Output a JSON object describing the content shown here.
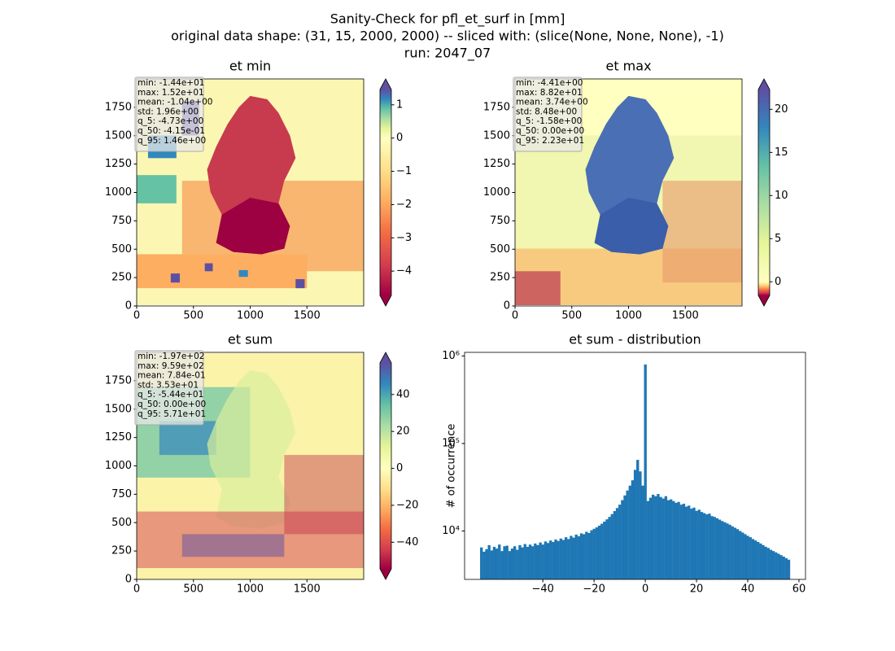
{
  "suptitle": [
    "Sanity-Check for pfl_et_surf in [mm]",
    "original data shape: (31, 15, 2000, 2000) -- sliced with: (slice(None, None, None), -1)",
    "run: 2047_07"
  ],
  "chart_data": [
    {
      "type": "heatmap",
      "title": "et min",
      "xlim": [
        0,
        2000
      ],
      "ylim": [
        0,
        2000
      ],
      "xticks": [
        0,
        500,
        1000,
        1500
      ],
      "yticks": [
        0,
        250,
        500,
        750,
        1000,
        1250,
        1500,
        1750
      ],
      "stats": [
        "min: -1.44e+01",
        "max: 1.52e+01",
        "mean: -1.04e+00",
        "std: 1.96e+00",
        "q_5: -4.73e+00",
        "q_50: -4.15e-01",
        "q_95: 1.46e+00"
      ],
      "cmap": "Spectral",
      "norm_center": 0,
      "clim": [
        -4.73,
        1.46
      ],
      "cticks": [
        1,
        0,
        {
          "value": -1,
          "label": "−1"
        },
        {
          "value": -2,
          "label": "−2"
        },
        {
          "value": -3,
          "label": "−3"
        },
        {
          "value": -4,
          "label": "−4"
        }
      ]
    },
    {
      "type": "heatmap",
      "title": "et max",
      "xlim": [
        0,
        2000
      ],
      "ylim": [
        0,
        2000
      ],
      "xticks": [
        0,
        500,
        1000,
        1500
      ],
      "yticks": [
        0,
        250,
        500,
        750,
        1000,
        1250,
        1500,
        1750
      ],
      "stats": [
        "min: -4.41e+00",
        "max: 8.82e+01",
        "mean: 3.74e+00",
        "std: 8.48e+00",
        "q_5: -1.58e+00",
        "q_50: 0.00e+00",
        "q_95: 2.23e+01"
      ],
      "cmap": "Spectral",
      "norm_center": 0,
      "clim": [
        -1.58,
        22.3
      ],
      "cticks": [
        0,
        5,
        10,
        15,
        20
      ]
    },
    {
      "type": "heatmap",
      "title": "et sum",
      "xlim": [
        0,
        2000
      ],
      "ylim": [
        0,
        2000
      ],
      "xticks": [
        0,
        500,
        1000,
        1500
      ],
      "yticks": [
        0,
        250,
        500,
        750,
        1000,
        1250,
        1500,
        1750
      ],
      "stats": [
        "min: -1.97e+02",
        "max: 9.59e+02",
        "mean: 7.84e-01",
        "std: 3.53e+01",
        "q_5: -5.44e+01",
        "q_50: 0.00e+00",
        "q_95: 5.71e+01"
      ],
      "cmap": "Spectral",
      "norm_center": 0,
      "clim": [
        -54.4,
        57.1
      ],
      "cticks": [
        {
          "value": -40,
          "label": "−40"
        },
        {
          "value": -20,
          "label": "−20"
        },
        0,
        20,
        40
      ]
    },
    {
      "type": "histogram",
      "title": "et sum - distribution",
      "ylabel": "# of occurrence",
      "color": "#1f77b4",
      "log": true,
      "bins": [
        -64.5,
        -63.5,
        -62.5,
        -61.5,
        -60.5,
        -59.5,
        -58.5,
        -57.5,
        -56.5,
        -55.5,
        -54.5,
        -53.5,
        -52.5,
        -51.5,
        -50.5,
        -49.5,
        -48.5,
        -47.5,
        -46.5,
        -45.5,
        -44.5,
        -43.5,
        -42.5,
        -41.5,
        -40.5,
        -39.5,
        -38.5,
        -37.5,
        -36.5,
        -35.5,
        -34.5,
        -33.5,
        -32.5,
        -31.5,
        -30.5,
        -29.5,
        -28.5,
        -27.5,
        -26.5,
        -25.5,
        -24.5,
        -23.5,
        -22.5,
        -21.5,
        -20.5,
        -19.5,
        -18.5,
        -17.5,
        -16.5,
        -15.5,
        -14.5,
        -13.5,
        -12.5,
        -11.5,
        -10.5,
        -9.5,
        -8.5,
        -7.5,
        -6.5,
        -5.5,
        -4.5,
        -3.5,
        -2.5,
        -1.5,
        -0.5,
        0.5,
        1.5,
        2.5,
        3.5,
        4.5,
        5.5,
        6.5,
        7.5,
        8.5,
        9.5,
        10.5,
        11.5,
        12.5,
        13.5,
        14.5,
        15.5,
        16.5,
        17.5,
        18.5,
        19.5,
        20.5,
        21.5,
        22.5,
        23.5,
        24.5,
        25.5,
        26.5,
        27.5,
        28.5,
        29.5,
        30.5,
        31.5,
        32.5,
        33.5,
        34.5,
        35.5,
        36.5,
        37.5,
        38.5,
        39.5,
        40.5,
        41.5,
        42.5,
        43.5,
        44.5,
        45.5,
        46.5,
        47.5,
        48.5,
        49.5,
        50.5,
        51.5,
        52.5,
        53.5,
        54.5,
        55.5,
        56.5
      ],
      "values": [
        6500,
        5800,
        6200,
        6900,
        6000,
        6600,
        6300,
        7000,
        5900,
        6700,
        6800,
        5900,
        6300,
        6700,
        6100,
        6900,
        6500,
        7100,
        6600,
        7000,
        6700,
        7200,
        6900,
        7400,
        7000,
        7600,
        7300,
        7800,
        7500,
        8000,
        7700,
        8200,
        7900,
        8500,
        8100,
        8800,
        8400,
        9100,
        8700,
        9400,
        9200,
        9800,
        9500,
        10200,
        10600,
        11000,
        11500,
        12100,
        12800,
        13600,
        14500,
        15600,
        16900,
        18300,
        20000,
        22500,
        25500,
        29000,
        33000,
        38000,
        50000,
        65000,
        48000,
        33000,
        800000,
        22000,
        24000,
        26000,
        25000,
        26500,
        24500,
        23500,
        25000,
        22500,
        23000,
        22000,
        21000,
        21500,
        20000,
        20500,
        19000,
        19500,
        18000,
        18500,
        17000,
        17500,
        16500,
        16000,
        15500,
        15800,
        14800,
        14500,
        14000,
        13500,
        13000,
        12600,
        12200,
        11800,
        11300,
        10900,
        10500,
        10000,
        9600,
        9200,
        8800,
        8500,
        8100,
        7800,
        7500,
        7200,
        6900,
        6600,
        6400,
        6100,
        5900,
        5700,
        5500,
        5300,
        5100,
        4900,
        4700
      ],
      "xlim": [
        -70.55,
        62.55
      ],
      "ylim": [
        2800,
        1100000
      ],
      "xticks": [
        {
          "value": -40,
          "label": "−40"
        },
        {
          "value": -20,
          "label": "−20"
        },
        0,
        20,
        40,
        60
      ],
      "yticks": [
        {
          "value": 10000,
          "label": "10⁴"
        },
        {
          "value": 100000,
          "label": "10⁵"
        },
        {
          "value": 1000000,
          "label": "10⁶"
        }
      ]
    }
  ]
}
